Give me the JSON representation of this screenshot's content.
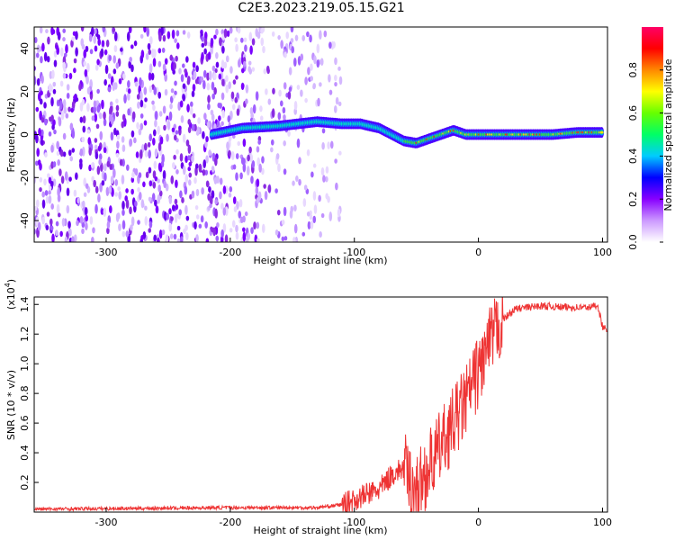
{
  "title": "C2E3.2023.219.05.15.G21",
  "chart_data": [
    {
      "type": "heatmap",
      "xlabel": "Height of straight line (km)",
      "ylabel": "Frequency (Hz)",
      "xlim": [
        -358,
        104
      ],
      "ylim": [
        -50,
        50
      ],
      "x_ticks": [
        -300,
        -200,
        -100,
        0,
        100
      ],
      "y_ticks": [
        -40,
        -20,
        0,
        20,
        40
      ],
      "colorbar": {
        "label": "Normalized spectral amplitude",
        "range": [
          0.0,
          1.0
        ],
        "ticks": [
          "0.0",
          "0.2",
          "0.4",
          "0.6",
          "0.8"
        ],
        "colors": [
          "#ffffff",
          "#cc99ff",
          "#8800ff",
          "#0000ff",
          "#00ccff",
          "#00ff66",
          "#66ff00",
          "#ffff00",
          "#ff8800",
          "#ff0000",
          "#ff0066"
        ]
      },
      "ridge": {
        "x": [
          -215,
          -190,
          -160,
          -130,
          -110,
          -95,
          -80,
          -70,
          -60,
          -50,
          -40,
          -30,
          -20,
          -10,
          0,
          20,
          40,
          60,
          80,
          100
        ],
        "freq_hz": [
          0,
          3,
          4,
          6,
          5,
          5,
          3,
          0,
          -3,
          -4,
          -2,
          0,
          2,
          0,
          0,
          0,
          0,
          0,
          1,
          1
        ]
      }
    },
    {
      "type": "line",
      "xlabel": "Height of straight line (km)",
      "ylabel": "SNR (10 * v/v)",
      "y_multiplier": "(x10",
      "y_multiplier_exp": "4",
      "y_multiplier_close": ")",
      "xlim": [
        -358,
        104
      ],
      "ylim": [
        0,
        1.45
      ],
      "x_ticks": [
        -300,
        -200,
        -100,
        0,
        100
      ],
      "y_ticks": [
        "0.2",
        "0.4",
        "0.6",
        "0.8",
        "1.0",
        "1.2",
        "1.4"
      ],
      "line_color": "#ee3333",
      "series": [
        {
          "x": [
            -358,
            -200,
            -130,
            -110,
            -100,
            -90,
            -80,
            -70,
            -60,
            -55,
            -50,
            -40,
            -30,
            -20,
            -10,
            0,
            10,
            20,
            30,
            50,
            70,
            90,
            96,
            100,
            104
          ],
          "y": [
            0.02,
            0.03,
            0.03,
            0.05,
            0.08,
            0.12,
            0.15,
            0.25,
            0.3,
            0.2,
            0.15,
            0.3,
            0.45,
            0.6,
            0.75,
            0.95,
            1.15,
            1.3,
            1.37,
            1.39,
            1.38,
            1.38,
            1.4,
            1.25,
            1.22
          ]
        }
      ]
    }
  ]
}
